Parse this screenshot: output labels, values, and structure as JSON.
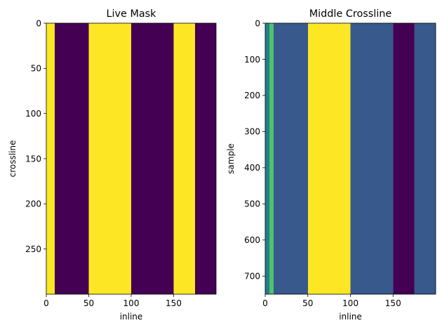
{
  "chart_data": [
    {
      "type": "heatmap",
      "title": "Live Mask",
      "xlabel": "inline",
      "ylabel": "crossline",
      "xlim": [
        0,
        200
      ],
      "ylim": [
        300,
        0
      ],
      "xticks": [
        "0",
        "50",
        "100",
        "150"
      ],
      "yticks": [
        "0",
        "50",
        "100",
        "150",
        "200",
        "250"
      ],
      "xtick_values": [
        0,
        50,
        100,
        150
      ],
      "ytick_values": [
        0,
        50,
        100,
        150,
        200,
        250
      ],
      "columns": [
        {
          "x0": 0,
          "x1": 10,
          "value": 1
        },
        {
          "x0": 10,
          "x1": 50,
          "value": 0
        },
        {
          "x0": 50,
          "x1": 100,
          "value": 1
        },
        {
          "x0": 100,
          "x1": 150,
          "value": 0
        },
        {
          "x0": 150,
          "x1": 175,
          "value": 1
        },
        {
          "x0": 175,
          "x1": 200,
          "value": 0
        }
      ],
      "colormap": "viridis",
      "vmin": 0,
      "vmax": 1
    },
    {
      "type": "heatmap",
      "title": "Middle Crossline",
      "xlabel": "inline",
      "ylabel": "sample",
      "xlim": [
        0,
        200
      ],
      "ylim": [
        750,
        0
      ],
      "xticks": [
        "0",
        "50",
        "100",
        "150"
      ],
      "yticks": [
        "0",
        "100",
        "200",
        "300",
        "400",
        "500",
        "600",
        "700"
      ],
      "xtick_values": [
        0,
        50,
        100,
        150
      ],
      "ytick_values": [
        0,
        100,
        200,
        300,
        400,
        500,
        600,
        700
      ],
      "columns": [
        {
          "x0": 0,
          "x1": 5,
          "value": 0.42
        },
        {
          "x0": 5,
          "x1": 10,
          "value": 0.72
        },
        {
          "x0": 10,
          "x1": 50,
          "value": 0.28
        },
        {
          "x0": 50,
          "x1": 100,
          "value": 1.0
        },
        {
          "x0": 100,
          "x1": 150,
          "value": 0.28
        },
        {
          "x0": 150,
          "x1": 175,
          "value": 0.0
        },
        {
          "x0": 175,
          "x1": 200,
          "value": 0.28
        }
      ],
      "colormap": "viridis",
      "vmin": 0,
      "vmax": 1
    }
  ]
}
